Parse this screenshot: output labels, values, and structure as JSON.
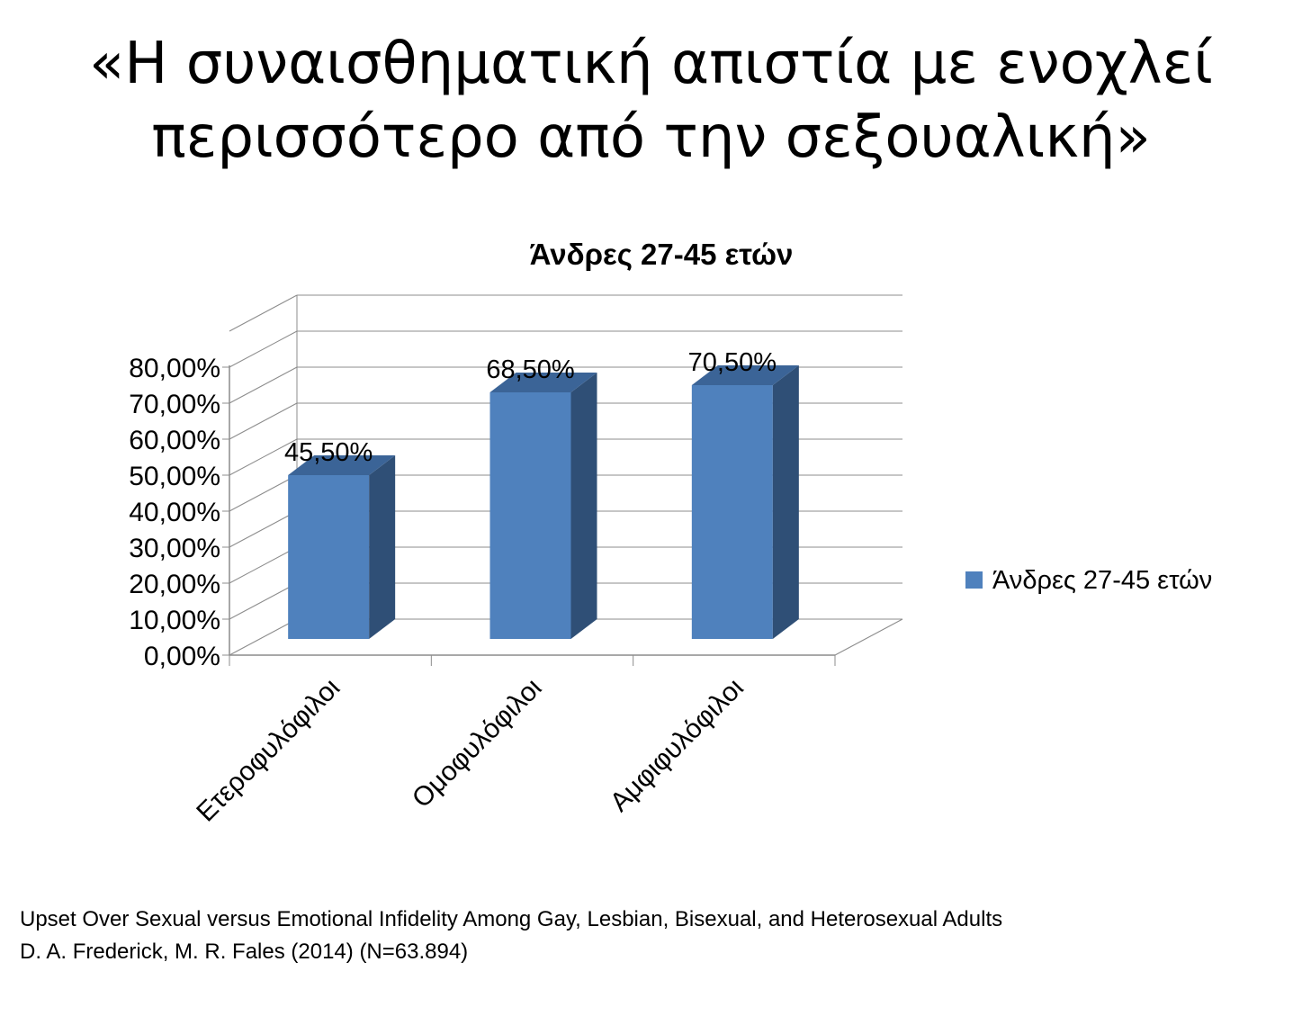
{
  "slide": {
    "title_line1": "«Η συναισθηματική απιστία με ενοχλεί",
    "title_line2": "περισσότερο από την σεξουαλική»"
  },
  "chart_data": {
    "type": "bar",
    "style": "3d-column",
    "title": "Άνδρες 27-45 ετών",
    "categories": [
      "Ετεροφυλόφιλοι",
      "Ομοφυλόφιλοι",
      "Αμφιφυλόφιλοι"
    ],
    "series": [
      {
        "name": "Άνδρες 27-45 ετών",
        "values": [
          45.5,
          68.5,
          70.5
        ],
        "color": "#4F81BD"
      }
    ],
    "data_labels": [
      "45,50%",
      "68,50%",
      "70,50%"
    ],
    "ylim": [
      0,
      80
    ],
    "yticks": [
      0,
      10,
      20,
      30,
      40,
      50,
      60,
      70,
      80
    ],
    "ytick_labels": [
      "0,00%",
      "10,00%",
      "20,00%",
      "30,00%",
      "40,00%",
      "50,00%",
      "60,00%",
      "70,00%",
      "80,00%"
    ],
    "grid": true,
    "legend_position": "right",
    "colors": {
      "bar_front": "#4F81BD",
      "bar_side": "#2F4F76",
      "bar_top": "#3B6497",
      "grid": "#8C8C8C"
    }
  },
  "source": {
    "line1": "Upset Over Sexual versus Emotional Infidelity Among Gay, Lesbian, Bisexual, and Heterosexual Adults",
    "line2": "D. A. Frederick, M. R. Fales (2014) (N=63.894)"
  }
}
